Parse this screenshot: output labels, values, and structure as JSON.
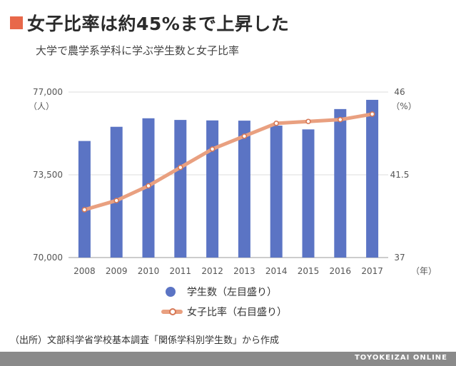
{
  "header": {
    "title": "女子比率は約45%まで上昇した",
    "subtitle": "大学で農学系学科に学ぶ学生数と女子比率"
  },
  "chart_data": {
    "type": "bar+line",
    "categories": [
      "2008",
      "2009",
      "2010",
      "2011",
      "2012",
      "2013",
      "2014",
      "2015",
      "2016",
      "2017"
    ],
    "series": [
      {
        "name": "学生数（左目盛り）",
        "type": "bar",
        "axis": "left",
        "color": "#5b74c4",
        "values": [
          74930,
          75530,
          75890,
          75820,
          75800,
          75790,
          75580,
          75420,
          76280,
          76670
        ]
      },
      {
        "name": "女子比率（右目盛り）",
        "type": "line",
        "axis": "right",
        "color": "#e9a080",
        "values": [
          39.6,
          40.1,
          40.9,
          41.9,
          42.9,
          43.6,
          44.3,
          44.4,
          44.5,
          44.8
        ]
      }
    ],
    "left_axis": {
      "min": 70000,
      "max": 77000,
      "ticks": [
        "70,000",
        "73,500",
        "77,000"
      ],
      "unit": "（人）"
    },
    "right_axis": {
      "min": 37,
      "max": 46,
      "ticks": [
        "37",
        "41.5",
        "46"
      ],
      "unit": "（%）"
    },
    "x_unit": "（年）"
  },
  "legend": {
    "bar_label": "学生数（左目盛り）",
    "line_label": "女子比率（右目盛り）"
  },
  "source": "（出所）文部科学省学校基本調査「関係学科別学生数」から作成",
  "brand": "TOYOKEIZAI ONLINE",
  "colors": {
    "accent": "#e8684a",
    "bar": "#5b74c4",
    "line": "#e9a080",
    "marker": "#d67856"
  }
}
